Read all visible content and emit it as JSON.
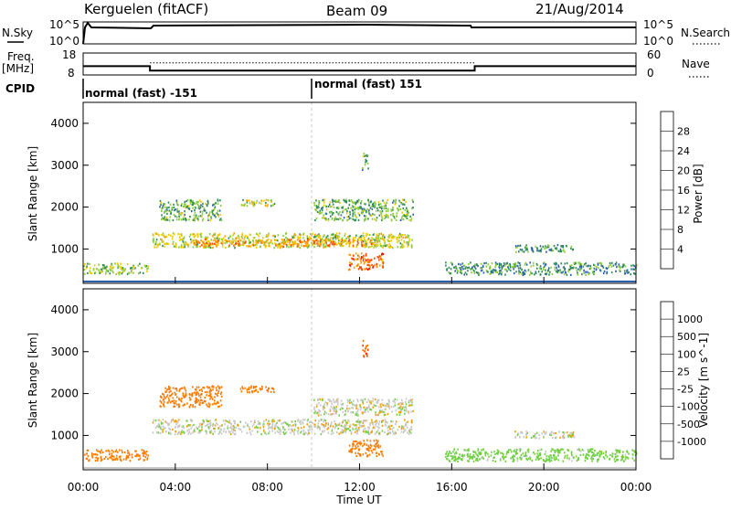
{
  "header": {
    "station": "Kerguelen (fitACF)",
    "beam": "Beam 09",
    "date": "21/Aug/2014"
  },
  "strip": {
    "nsky_label": "N.Sky",
    "nsearch_label": "N.Search",
    "nsky_ticks": [
      "10^5",
      "10^0"
    ],
    "nsearch_ticks": [
      "10^5",
      "10^0"
    ],
    "freq_label_1": "Freq.",
    "freq_label_2": "[MHz]",
    "freq_ticks": [
      "18",
      "8"
    ],
    "nave_label": "Nave",
    "nave_ticks": [
      "60",
      "0"
    ],
    "cpid_label": "CPID",
    "cpid_1": "normal (fast) -151",
    "cpid_2": "normal (fast) 151",
    "freq_series": [
      {
        "t": 0.0,
        "mhz": 12
      },
      {
        "t": 2.9,
        "mhz": 12
      },
      {
        "t": 2.9,
        "mhz": 10
      },
      {
        "t": 17.0,
        "mhz": 10
      },
      {
        "t": 17.0,
        "mhz": 12
      },
      {
        "t": 24.0,
        "mhz": 12
      }
    ],
    "nave_level": 33
  },
  "chart_data": [
    {
      "type": "heatmap",
      "title": "Power",
      "ylabel": "Slant Range [km]",
      "ylim": [
        180,
        4500
      ],
      "yticks": [
        1000,
        2000,
        3000,
        4000
      ],
      "colorbar": {
        "label": "Power [dB]",
        "ticks": [
          "28",
          "24",
          "20",
          "16",
          "12",
          "8",
          "4"
        ],
        "colors": [
          "#ff0000",
          "#ff4a00",
          "#ff9a00",
          "#f0c800",
          "#8acc3c",
          "#2e8b57",
          "#2a5fb0",
          "#0000ff"
        ]
      },
      "echoes": [
        {
          "t0": 3.0,
          "t1": 14.3,
          "r0": 1050,
          "r1": 1400,
          "power": 14
        },
        {
          "t0": 4.5,
          "t1": 12.8,
          "r0": 1080,
          "r1": 1250,
          "power": 20
        },
        {
          "t0": 3.3,
          "t1": 6.0,
          "r0": 1700,
          "r1": 2200,
          "power": 10
        },
        {
          "t0": 6.8,
          "t1": 8.3,
          "r0": 2050,
          "r1": 2200,
          "power": 14
        },
        {
          "t0": 10.0,
          "t1": 14.3,
          "r0": 1700,
          "r1": 2200,
          "power": 10
        },
        {
          "t0": 11.5,
          "t1": 13.0,
          "r0": 520,
          "r1": 920,
          "power": 22
        },
        {
          "t0": 0.0,
          "t1": 2.8,
          "r0": 420,
          "r1": 680,
          "power": 12
        },
        {
          "t0": 12.1,
          "t1": 12.35,
          "r0": 2900,
          "r1": 3300,
          "power": 10
        },
        {
          "t0": 15.7,
          "t1": 24.0,
          "r0": 400,
          "r1": 700,
          "power": 8
        },
        {
          "t0": 18.7,
          "t1": 21.3,
          "r0": 950,
          "r1": 1120,
          "power": 8
        }
      ]
    },
    {
      "type": "heatmap",
      "title": "Velocity",
      "xlabel": "Time UT",
      "ylabel": "Slant Range [km]",
      "ylim": [
        180,
        4500
      ],
      "yticks": [
        1000,
        2000,
        3000,
        4000
      ],
      "xticks": [
        "00:00",
        "04:00",
        "08:00",
        "12:00",
        "16:00",
        "20:00",
        "00:00"
      ],
      "colorbar": {
        "label": "Velocity [m s^-1]",
        "ticks": [
          "1000",
          "500",
          "100",
          "25",
          "-25",
          "-100",
          "-500",
          "-1000"
        ],
        "colors": [
          "#1f3fbf",
          "#2e6fb0",
          "#2e8b57",
          "#6fcf3f",
          "#c8c8c8",
          "#f0a000",
          "#ff7a00",
          "#ff3a00",
          "#ff0000"
        ]
      },
      "echoes": [
        {
          "t0": 3.0,
          "t1": 14.3,
          "r0": 1050,
          "r1": 1400,
          "velocity": 0
        },
        {
          "t0": 10.0,
          "t1": 14.3,
          "r0": 1500,
          "r1": 1900,
          "velocity": 0
        },
        {
          "t0": 0.0,
          "t1": 2.8,
          "r0": 420,
          "r1": 680,
          "velocity": -400
        },
        {
          "t0": 3.3,
          "t1": 6.0,
          "r0": 1700,
          "r1": 2200,
          "velocity": -150
        },
        {
          "t0": 6.8,
          "t1": 8.3,
          "r0": 2050,
          "r1": 2200,
          "velocity": -300
        },
        {
          "t0": 11.5,
          "t1": 13.0,
          "r0": 520,
          "r1": 920,
          "velocity": -200
        },
        {
          "t0": 12.1,
          "t1": 12.35,
          "r0": 2900,
          "r1": 3300,
          "velocity": -500
        },
        {
          "t0": 15.7,
          "t1": 24.0,
          "r0": 400,
          "r1": 700,
          "velocity": 60
        },
        {
          "t0": 18.7,
          "t1": 21.3,
          "r0": 950,
          "r1": 1120,
          "velocity": 0
        }
      ]
    }
  ]
}
